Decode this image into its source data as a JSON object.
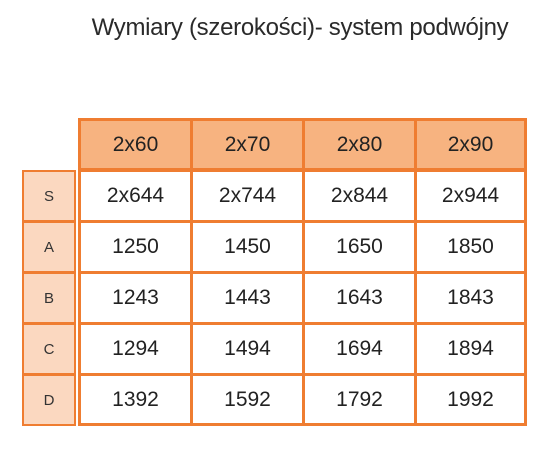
{
  "title": "Wymiary (szerokości)- system podwójny",
  "table": {
    "columns": [
      "2x60",
      "2x70",
      "2x80",
      "2x90"
    ],
    "rows": [
      {
        "label": "S",
        "values": [
          "2x644",
          "2x744",
          "2x844",
          "2x944"
        ]
      },
      {
        "label": "A",
        "values": [
          "1250",
          "1450",
          "1650",
          "1850"
        ]
      },
      {
        "label": "B",
        "values": [
          "1243",
          "1443",
          "1643",
          "1843"
        ]
      },
      {
        "label": "C",
        "values": [
          "1294",
          "1494",
          "1694",
          "1894"
        ]
      },
      {
        "label": "D",
        "values": [
          "1392",
          "1592",
          "1792",
          "1992"
        ]
      }
    ]
  },
  "colors": {
    "border": "#ef7d31",
    "header_fill": "#f7b380",
    "row_label_fill": "#fbd8c0"
  }
}
